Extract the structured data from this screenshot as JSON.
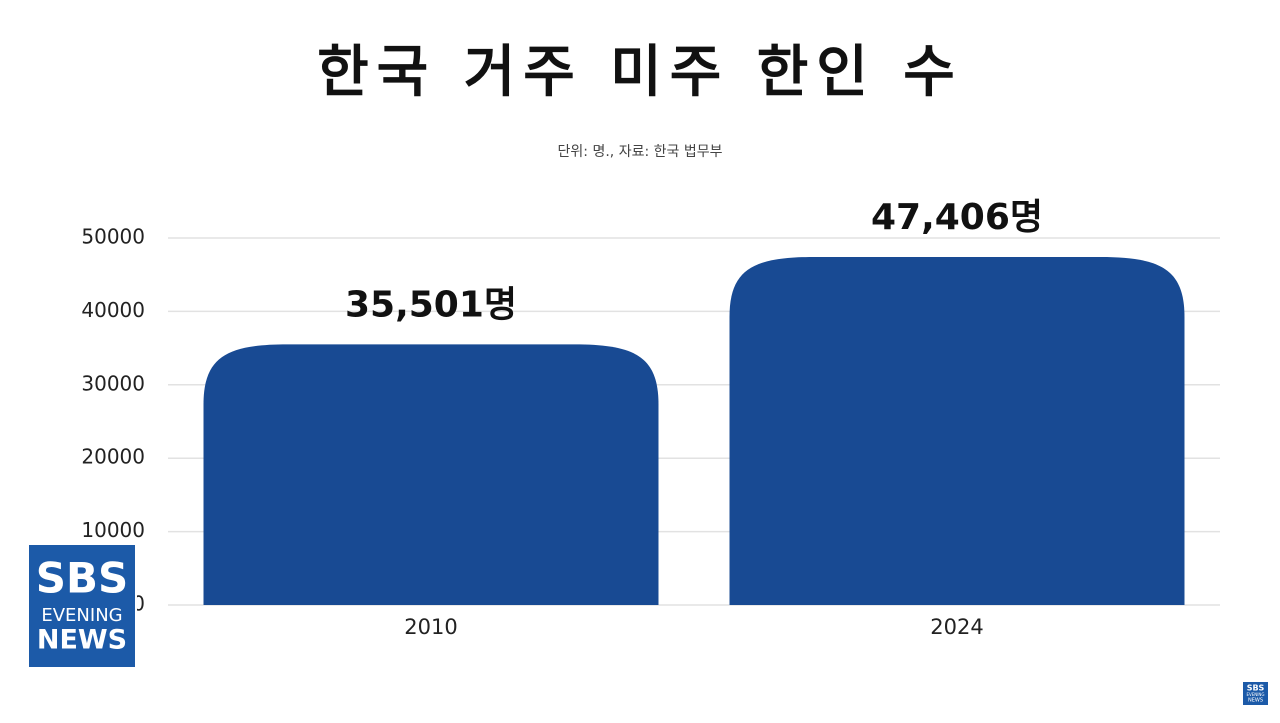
{
  "chart_data": {
    "type": "bar",
    "title": "한국 거주 미주 한인 수",
    "subtitle": "단위: 명., 자료: 한국 법무부",
    "categories": [
      "2010",
      "2024"
    ],
    "values": [
      35501,
      47406
    ],
    "value_labels": [
      "35,501명",
      "47,406명"
    ],
    "color": "#184a93",
    "ylim": [
      0,
      50000
    ],
    "yticks": [
      0,
      10000,
      20000,
      30000,
      40000,
      50000
    ],
    "grid": true
  },
  "logo": {
    "line1": "SBS",
    "line2": "EVENING",
    "line3": "NEWS"
  }
}
